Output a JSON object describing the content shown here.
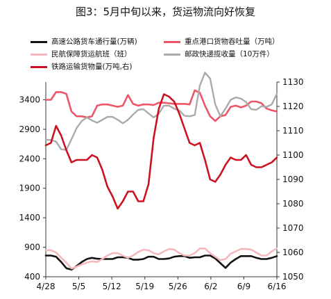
{
  "title": "图3：5月中旬以来，货运物流向好恢复",
  "chart_data": {
    "type": "line",
    "x_ticks": [
      "4/28",
      "5/5",
      "5/12",
      "5/19",
      "5/26",
      "6/2",
      "6/9",
      "6/16"
    ],
    "y_left": {
      "ticks": [
        "400",
        "900",
        "1400",
        "1900",
        "2400",
        "2900",
        "3400"
      ],
      "ylim": [
        400,
        3700
      ]
    },
    "y_right": {
      "ticks": [
        "1050",
        "1060",
        "1070",
        "1080",
        "1090",
        "1100",
        "1110",
        "1120",
        "1130"
      ],
      "ylim": [
        1050,
        1130
      ]
    },
    "series": [
      {
        "name": "高速公路货车通行量(万辆)",
        "color": "#111111",
        "axis": "left",
        "width": 2.6,
        "values": [
          760,
          760,
          740,
          650,
          545,
          520,
          580,
          650,
          700,
          720,
          705,
          700,
          700,
          700,
          730,
          730,
          720,
          690,
          690,
          700,
          740,
          740,
          700,
          700,
          710,
          740,
          750,
          750,
          720,
          730,
          730,
          760,
          760,
          710,
          630,
          550,
          640,
          700,
          750,
          750,
          750,
          720,
          700,
          700,
          720,
          750
        ]
      },
      {
        "name": "重点港口货物吞吐量（万吨）",
        "color": "#ee5566",
        "axis": "left",
        "width": 2.6,
        "values": [
          3400,
          3400,
          3530,
          3530,
          3500,
          3200,
          3120,
          3120,
          3100,
          3120,
          3300,
          3320,
          3320,
          3300,
          3280,
          3300,
          3480,
          3330,
          3300,
          3320,
          3320,
          3310,
          3350,
          3350,
          3340,
          3330,
          3330,
          3330,
          3320,
          3560,
          3520,
          3300,
          3120,
          3040,
          3120,
          3140,
          3280,
          3300,
          3270,
          3300,
          3370,
          3370,
          3340,
          3250,
          3220,
          3200
        ]
      },
      {
        "name": "民航保障货运航班（班）",
        "color": "#f5b8bc",
        "axis": "left",
        "width": 2.6,
        "values": [
          850,
          850,
          810,
          720,
          640,
          540,
          570,
          610,
          640,
          660,
          650,
          700,
          760,
          800,
          800,
          760,
          720,
          760,
          820,
          860,
          850,
          800,
          780,
          830,
          870,
          860,
          800,
          760,
          760,
          800,
          880,
          880,
          800,
          740,
          680,
          700,
          790,
          830,
          870,
          870,
          860,
          810,
          760,
          760,
          830,
          880
        ]
      },
      {
        "name": "邮政快递揽收量（10万件）",
        "color": "#aaaaaa",
        "axis": "left",
        "width": 2.4,
        "values": [
          2720,
          2720,
          2690,
          2560,
          2550,
          2730,
          2920,
          3040,
          3100,
          3050,
          3010,
          3060,
          3110,
          3110,
          3060,
          3000,
          3060,
          3150,
          3230,
          3240,
          3170,
          3100,
          3160,
          3300,
          3300,
          3250,
          3220,
          3130,
          3120,
          3140,
          3640,
          3860,
          3760,
          3320,
          3120,
          3250,
          3400,
          3440,
          3420,
          3360,
          3240,
          3230,
          3290,
          3280,
          3320,
          3500
        ]
      },
      {
        "name": "铁路运输货物量(万吨,右)",
        "color": "#cc1122",
        "axis": "right",
        "width": 2.6,
        "values": [
          1104,
          1105,
          1112,
          1108,
          1102,
          1097,
          1098,
          1098,
          1098,
          1100,
          1099,
          1094,
          1087,
          1083,
          1078,
          1081,
          1085,
          1085,
          1081,
          1081,
          1088,
          1107,
          1119,
          1125,
          1124,
          1122,
          1117,
          1111,
          1105,
          1104,
          1105,
          1098,
          1090,
          1089,
          1092,
          1096,
          1099,
          1098,
          1098,
          1100,
          1096,
          1095,
          1095,
          1096,
          1097,
          1099
        ]
      }
    ]
  }
}
